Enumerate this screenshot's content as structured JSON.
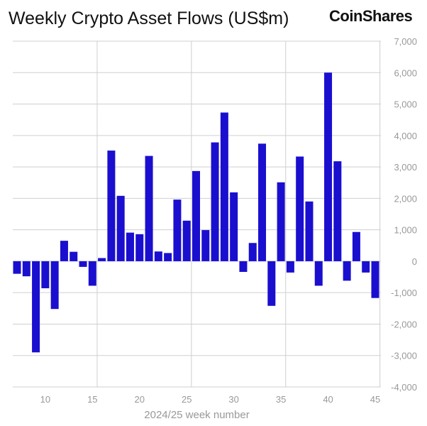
{
  "chart_data": {
    "type": "bar",
    "title": "Weekly Crypto Asset Flows (US$m)",
    "brand": "CoinShares",
    "xlabel": "2024/25 week number",
    "ylabel": "",
    "ylim": [
      -4000,
      7000
    ],
    "yticks": [
      7000,
      6000,
      5000,
      4000,
      3000,
      2000,
      1000,
      0,
      -1000,
      -2000,
      -3000,
      -4000
    ],
    "ytick_labels": [
      "7,000",
      "6,000",
      "5,000",
      "4,000",
      "3,000",
      "2,000",
      "1,000",
      "0",
      "-1,000",
      "-2,000",
      "-3,000",
      "-4,000"
    ],
    "xticks": [
      10,
      15,
      20,
      25,
      30,
      35,
      40,
      45
    ],
    "xtick_labels": [
      "10",
      "15",
      "20",
      "25",
      "30",
      "35",
      "40",
      "45"
    ],
    "bar_color": "#1a0fcf",
    "grid": true,
    "categories": [
      7,
      8,
      9,
      10,
      11,
      12,
      13,
      14,
      15,
      16,
      17,
      18,
      19,
      20,
      21,
      22,
      23,
      24,
      25,
      26,
      27,
      28,
      29,
      30,
      31,
      32,
      33,
      34,
      35,
      36,
      37,
      38,
      39,
      40,
      41,
      42,
      43,
      44,
      45
    ],
    "values": [
      -400,
      -480,
      -2900,
      -860,
      -1520,
      650,
      300,
      -180,
      -780,
      100,
      3520,
      2080,
      910,
      860,
      3350,
      310,
      260,
      1960,
      1290,
      2870,
      990,
      3780,
      4730,
      2190,
      -340,
      580,
      3740,
      -1420,
      2510,
      -360,
      3330,
      1900,
      -780,
      6000,
      3180,
      -620,
      930,
      -360,
      -1170
    ]
  }
}
